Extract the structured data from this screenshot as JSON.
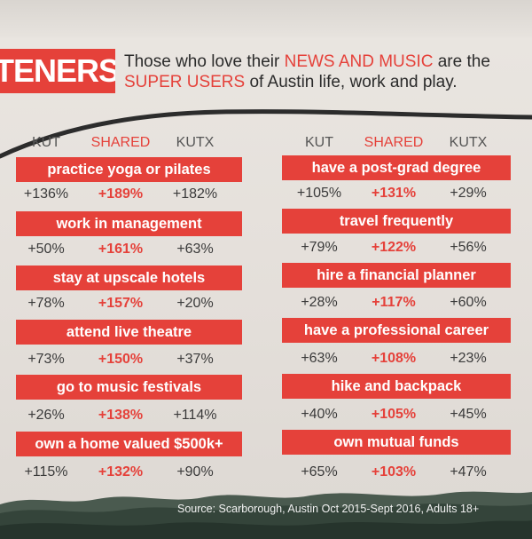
{
  "header": {
    "banner_text": "TENERS",
    "headline_line1_prefix": "Those who love their ",
    "headline_line1_highlight": "NEWS AND MUSIC",
    "headline_line1_suffix": " are the",
    "headline_line2_highlight": "SUPER USERS",
    "headline_line2_suffix": " of Austin life, work and play."
  },
  "columns": {
    "kut": "KUT",
    "shared": "SHARED",
    "kutx": "KUTX"
  },
  "left": [
    {
      "label": "practice yoga or pilates",
      "kut": "+136%",
      "shared": "+189%",
      "kutx": "+182%"
    },
    {
      "label": "work in management",
      "kut": "+50%",
      "shared": "+161%",
      "kutx": "+63%"
    },
    {
      "label": "stay at upscale hotels",
      "kut": "+78%",
      "shared": "+157%",
      "kutx": "+20%"
    },
    {
      "label": "attend live theatre",
      "kut": "+73%",
      "shared": "+150%",
      "kutx": "+37%"
    },
    {
      "label": "go to music festivals",
      "kut": "+26%",
      "shared": "+138%",
      "kutx": "+114%"
    },
    {
      "label": "own a home valued $500k+",
      "kut": "+115%",
      "shared": "+132%",
      "kutx": "+90%"
    }
  ],
  "right": [
    {
      "label": "have a post-grad degree",
      "kut": "+105%",
      "shared": "+131%",
      "kutx": "+29%"
    },
    {
      "label": "travel frequently",
      "kut": "+79%",
      "shared": "+122%",
      "kutx": "+56%"
    },
    {
      "label": "hire a financial planner",
      "kut": "+28%",
      "shared": "+117%",
      "kutx": "+60%"
    },
    {
      "label": "have a professional career",
      "kut": "+63%",
      "shared": "+108%",
      "kutx": "+23%"
    },
    {
      "label": "hike and backpack",
      "kut": "+40%",
      "shared": "+105%",
      "kutx": "+45%"
    },
    {
      "label": "own mutual funds",
      "kut": "+65%",
      "shared": "+103%",
      "kutx": "+47%"
    }
  ],
  "footer": {
    "source": "Source:  Scarborough, Austin Oct 2015-Sept 2016, Adults 18+"
  },
  "colors": {
    "accent_red": "#e5413a",
    "text_dark": "#3a3a3a",
    "paper": "#e7e2dd",
    "footer_water": "#2e3f34"
  }
}
